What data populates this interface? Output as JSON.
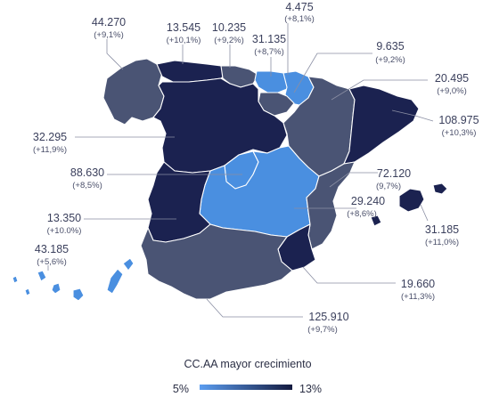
{
  "colors": {
    "low": "#4a8fe0",
    "mid_light": "#3f5fa8",
    "mid": "#4a5474",
    "dark": "#1b2250",
    "scale_start": "#5b9df0",
    "scale_end": "#141a3f"
  },
  "regions": [
    {
      "key": "galicia",
      "value": "44.270",
      "pct": "(+9,1%)",
      "shade": "mid"
    },
    {
      "key": "asturias",
      "value": "13.545",
      "pct": "(+10,1%)",
      "shade": "dark"
    },
    {
      "key": "cantabria",
      "value": "10.235",
      "pct": "(+9,2%)",
      "shade": "mid"
    },
    {
      "key": "pais-vasco",
      "value": "31.135",
      "pct": "(+8,7%)",
      "shade": "low"
    },
    {
      "key": "navarra",
      "value": "4.475",
      "pct": "(+8,1%)",
      "shade": "low"
    },
    {
      "key": "la-rioja",
      "value": "9.635",
      "pct": "(+9,2%)",
      "shade": "mid"
    },
    {
      "key": "aragon",
      "value": "20.495",
      "pct": "(+9,0%)",
      "shade": "mid"
    },
    {
      "key": "cataluna",
      "value": "108.975",
      "pct": "(+10,3%)",
      "shade": "dark"
    },
    {
      "key": "castilla-leon",
      "value": "32.295",
      "pct": "(+11,9%)",
      "shade": "dark"
    },
    {
      "key": "madrid",
      "value": "88.630",
      "pct": "(+8,5%)",
      "shade": "low"
    },
    {
      "key": "comunidad-valenciana",
      "value": "72.120",
      "pct": "(9,7%)",
      "shade": "mid"
    },
    {
      "key": "castilla-la-mancha",
      "value": "29.240",
      "pct": "(+8,6%)",
      "shade": "low"
    },
    {
      "key": "extremadura",
      "value": "13.350",
      "pct": "(+10.0%)",
      "shade": "dark"
    },
    {
      "key": "baleares",
      "value": "31.185",
      "pct": "(+11,0%)",
      "shade": "dark"
    },
    {
      "key": "canarias",
      "value": "43.185",
      "pct": "(+5,6%)",
      "shade": "low"
    },
    {
      "key": "murcia",
      "value": "19.660",
      "pct": "(+11,3%)",
      "shade": "dark"
    },
    {
      "key": "andalucia",
      "value": "125.910",
      "pct": "(+9,7%)",
      "shade": "mid"
    }
  ],
  "legend": {
    "title": "CC.AA mayor crecimiento",
    "min_label": "5%",
    "max_label": "13%"
  }
}
